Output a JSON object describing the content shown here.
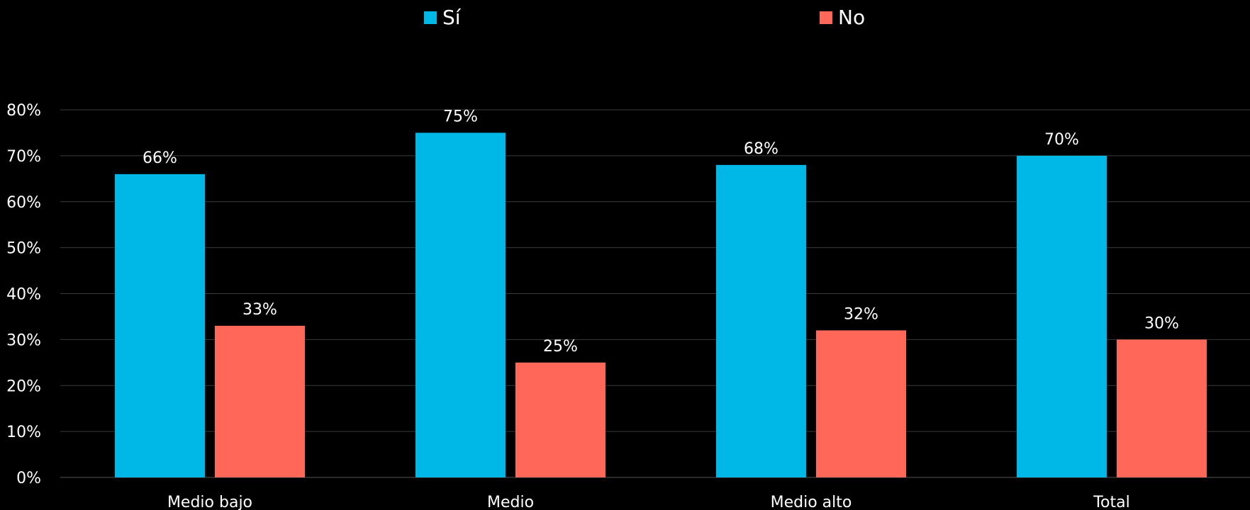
{
  "chart_data": {
    "type": "bar",
    "categories": [
      "Medio bajo",
      "Medio",
      "Medio alto",
      "Total"
    ],
    "series": [
      {
        "name": "Sí",
        "values": [
          66,
          75,
          68,
          70
        ],
        "labels": [
          "66%",
          "75%",
          "68%",
          "70%"
        ],
        "color": "#00b8e8"
      },
      {
        "name": "No",
        "values": [
          33,
          25,
          32,
          30
        ],
        "labels": [
          "33%",
          "25%",
          "32%",
          "30%"
        ],
        "color": "#ff6858"
      }
    ],
    "ylim": [
      0,
      80
    ],
    "yticks": [
      0,
      10,
      20,
      30,
      40,
      50,
      60,
      70,
      80
    ],
    "ytick_labels": [
      "0%",
      "10%",
      "20%",
      "30%",
      "40%",
      "50%",
      "60%",
      "70%",
      "80%"
    ],
    "grid": true,
    "legend_position": "top-center",
    "background": "#000000",
    "title": "",
    "xlabel": "",
    "ylabel": ""
  }
}
